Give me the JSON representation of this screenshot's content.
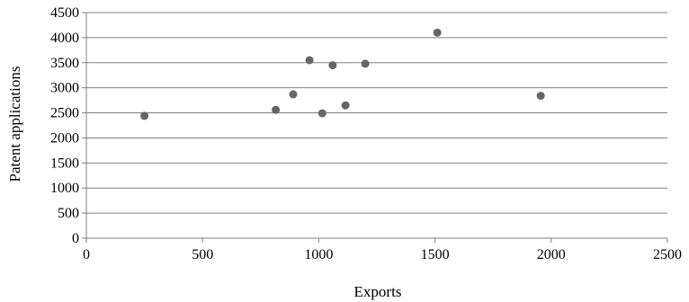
{
  "chart_data": {
    "type": "scatter",
    "title": "",
    "xlabel": "Exports",
    "ylabel": "Patent applications",
    "xlim": [
      0,
      2500
    ],
    "ylim": [
      0,
      4500
    ],
    "x_ticks": [
      0,
      500,
      1000,
      1500,
      2000,
      2500
    ],
    "y_ticks": [
      0,
      500,
      1000,
      1500,
      2000,
      2500,
      3000,
      3500,
      4000,
      4500
    ],
    "x_tick_labels": [
      "0",
      "500",
      "1000",
      "1500",
      "2000",
      "2500"
    ],
    "y_tick_labels": [
      "0",
      "500",
      "1000",
      "1500",
      "2000",
      "2500",
      "3000",
      "3500",
      "4000",
      "4500"
    ],
    "grid": "horizontal",
    "legend": "none",
    "marker_color": "#666666",
    "gridline_color": "#808080",
    "points": [
      {
        "x": 250,
        "y": 2440
      },
      {
        "x": 815,
        "y": 2560
      },
      {
        "x": 890,
        "y": 2870
      },
      {
        "x": 960,
        "y": 3550
      },
      {
        "x": 1015,
        "y": 2490
      },
      {
        "x": 1060,
        "y": 3450
      },
      {
        "x": 1115,
        "y": 2650
      },
      {
        "x": 1200,
        "y": 3480
      },
      {
        "x": 1510,
        "y": 4100
      },
      {
        "x": 1955,
        "y": 2840
      }
    ]
  }
}
